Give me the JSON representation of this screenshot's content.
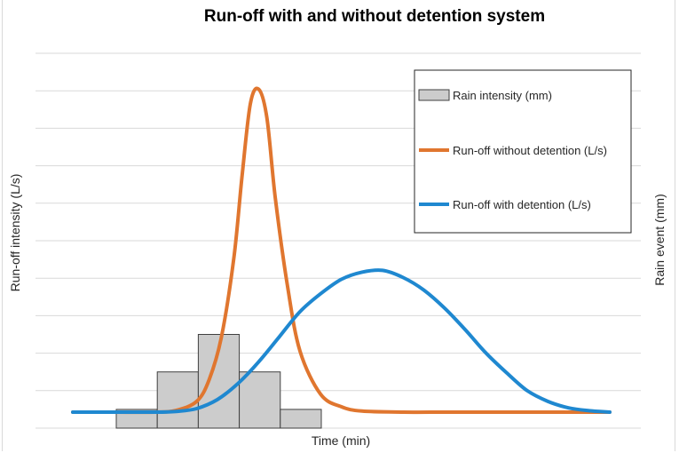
{
  "chart_data": {
    "type": "bar+line",
    "title": "Run-off with and without detention system",
    "xlabel": "Time (min)",
    "ylabel": "Run-off intensity (L/s)",
    "y2label": "Rain event (mm)",
    "grid": true,
    "tick_labels_shown": false,
    "legend_position": "top-right",
    "bars": {
      "name": "Rain intensity (mm)",
      "color": "#cccccc",
      "edge_color": "#404040",
      "values": [
        0.5,
        1.5,
        2.5,
        1.5,
        0.5
      ]
    },
    "series": [
      {
        "name": "Run-off without detention (L/s)",
        "color": "#e0762f",
        "x": [
          0,
          1,
          2,
          2.5,
          3,
          3.3,
          3.6,
          3.9,
          4.1,
          4.3,
          4.5,
          4.7,
          4.9,
          5.2,
          5.5,
          6,
          6.5,
          7,
          8,
          9,
          10,
          11,
          12,
          13
        ],
        "y": [
          0,
          0,
          0,
          0.05,
          0.3,
          0.9,
          2.1,
          4.3,
          6.6,
          8.6,
          9.0,
          8.2,
          6.0,
          3.5,
          1.7,
          0.5,
          0.15,
          0.03,
          0,
          0,
          0,
          0,
          0,
          0
        ]
      },
      {
        "name": "Run-off with detention (L/s)",
        "color": "#1f88d0",
        "x": [
          0,
          1,
          2,
          2.5,
          3,
          3.5,
          4,
          4.5,
          5,
          5.5,
          6,
          6.5,
          7,
          7.5,
          8,
          8.5,
          9,
          9.5,
          10,
          10.5,
          11,
          11.5,
          12,
          12.5,
          13
        ],
        "y": [
          0,
          0,
          0,
          0.02,
          0.1,
          0.35,
          0.8,
          1.4,
          2.1,
          2.8,
          3.3,
          3.7,
          3.9,
          3.95,
          3.75,
          3.4,
          2.9,
          2.3,
          1.65,
          1.1,
          0.6,
          0.3,
          0.12,
          0.04,
          0
        ]
      }
    ]
  }
}
